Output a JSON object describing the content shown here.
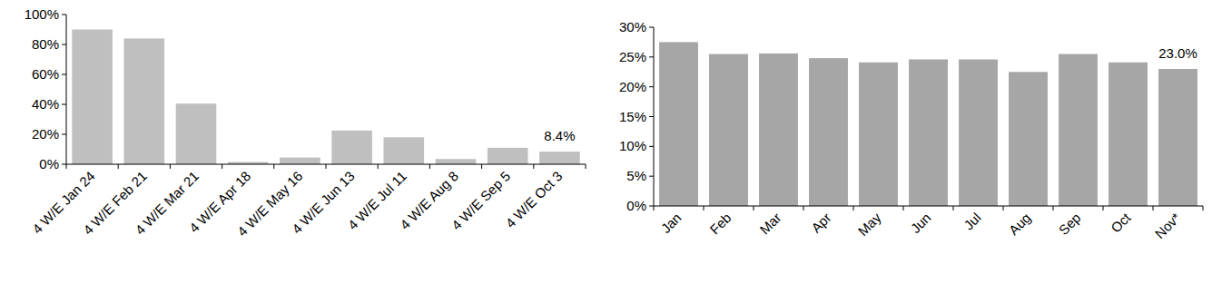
{
  "chart_data": [
    {
      "type": "bar",
      "categories": [
        "4 W/E Jan 24",
        "4 W/E Feb 21",
        "4 W/E Mar 21",
        "4 W/E Apr 18",
        "4 W/E May 16",
        "4 W/E Jun 13",
        "4 W/E Jul 11",
        "4 W/E Aug 8",
        "4 W/E Sep 5",
        "4 W/E Oct 3"
      ],
      "values": [
        90,
        84,
        40.5,
        1.5,
        4.5,
        22.5,
        18,
        3.5,
        11,
        8.4
      ],
      "value_labels": [
        null,
        null,
        null,
        null,
        null,
        null,
        null,
        null,
        null,
        "8.4%"
      ],
      "color": "#bfbfbf",
      "ylim": [
        0,
        100
      ],
      "yticks": [
        {
          "value": 0,
          "label": "0%"
        },
        {
          "value": 20,
          "label": "20%"
        },
        {
          "value": 40,
          "label": "40%"
        },
        {
          "value": 60,
          "label": "60%"
        },
        {
          "value": 80,
          "label": "80%"
        },
        {
          "value": 100,
          "label": "100%"
        }
      ],
      "grid": false
    },
    {
      "type": "bar",
      "categories": [
        "Jan",
        "Feb",
        "Mar",
        "Apr",
        "May",
        "Jun",
        "Jul",
        "Aug",
        "Sep",
        "Oct",
        "Nov*"
      ],
      "values": [
        27.5,
        25.5,
        25.6,
        24.8,
        24.1,
        24.6,
        24.6,
        22.5,
        25.5,
        24.1,
        23.0
      ],
      "value_labels": [
        null,
        null,
        null,
        null,
        null,
        null,
        null,
        null,
        null,
        null,
        "23.0%"
      ],
      "color": "#a6a6a6",
      "ylim": [
        0,
        30
      ],
      "yticks": [
        {
          "value": 0,
          "label": "0%"
        },
        {
          "value": 5,
          "label": "5%"
        },
        {
          "value": 10,
          "label": "10%"
        },
        {
          "value": 15,
          "label": "15%"
        },
        {
          "value": 20,
          "label": "20%"
        },
        {
          "value": 25,
          "label": "25%"
        },
        {
          "value": 30,
          "label": "30%"
        }
      ],
      "grid": false
    }
  ]
}
